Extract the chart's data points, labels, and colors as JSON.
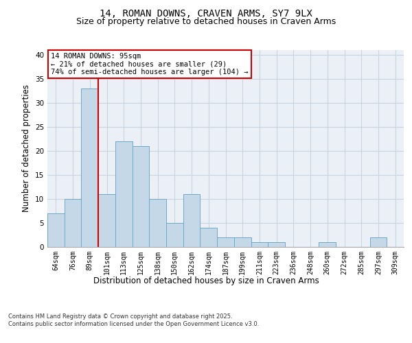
{
  "title1": "14, ROMAN DOWNS, CRAVEN ARMS, SY7 9LX",
  "title2": "Size of property relative to detached houses in Craven Arms",
  "xlabel": "Distribution of detached houses by size in Craven Arms",
  "ylabel": "Number of detached properties",
  "categories": [
    "64sqm",
    "76sqm",
    "89sqm",
    "101sqm",
    "113sqm",
    "125sqm",
    "138sqm",
    "150sqm",
    "162sqm",
    "174sqm",
    "187sqm",
    "199sqm",
    "211sqm",
    "223sqm",
    "236sqm",
    "248sqm",
    "260sqm",
    "272sqm",
    "285sqm",
    "297sqm",
    "309sqm"
  ],
  "values": [
    7,
    10,
    33,
    11,
    22,
    21,
    10,
    5,
    11,
    4,
    2,
    2,
    1,
    1,
    0,
    0,
    1,
    0,
    0,
    2,
    0
  ],
  "bar_color": "#c5d8e8",
  "bar_edge_color": "#6fa8c8",
  "annotation_text": "14 ROMAN DOWNS: 95sqm\n← 21% of detached houses are smaller (29)\n74% of semi-detached houses are larger (104) →",
  "annotation_box_color": "#ffffff",
  "annotation_box_edge": "#cc0000",
  "annotation_text_size": 7.5,
  "grid_color": "#c8d4e0",
  "background_color": "#eaf0f6",
  "ylim": [
    0,
    41
  ],
  "yticks": [
    0,
    5,
    10,
    15,
    20,
    25,
    30,
    35,
    40
  ],
  "footer_text": "Contains HM Land Registry data © Crown copyright and database right 2025.\nContains public sector information licensed under the Open Government Licence v3.0.",
  "title_fontsize": 10,
  "subtitle_fontsize": 9,
  "tick_fontsize": 7,
  "label_fontsize": 8.5
}
